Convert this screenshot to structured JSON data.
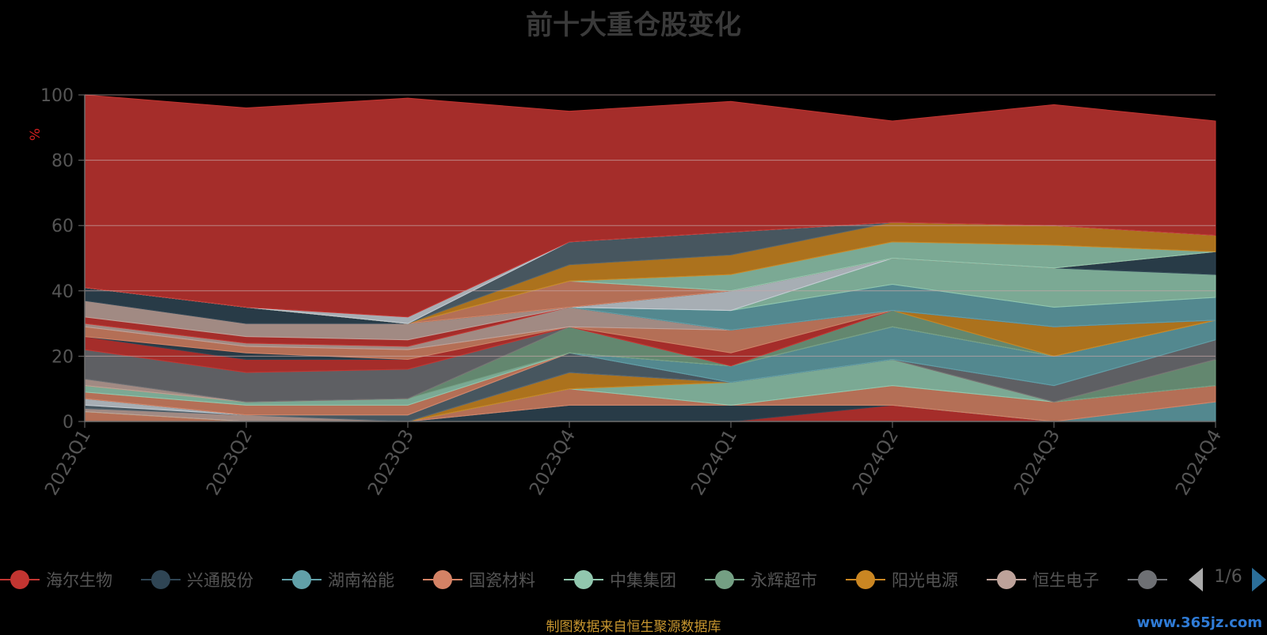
{
  "title": "前十大重仓股变化",
  "source_note": "制图数据来自恒生聚源数据库",
  "watermark": "www.365jz.com",
  "pager": {
    "text": "1/6"
  },
  "legend": {
    "items": [
      {
        "label": "海尔生物",
        "color": "#c23531"
      },
      {
        "label": "兴通股份",
        "color": "#2f4554"
      },
      {
        "label": "湖南裕能",
        "color": "#61a0a8"
      },
      {
        "label": "国瓷材料",
        "color": "#d48265"
      },
      {
        "label": "中集集团",
        "color": "#91c7ae"
      },
      {
        "label": "永辉超市",
        "color": "#749f83"
      },
      {
        "label": "阳光电源",
        "color": "#ca8622"
      },
      {
        "label": "恒生电子",
        "color": "#bda29a"
      },
      {
        "label": "",
        "color": "#6e7074"
      }
    ]
  },
  "chart_data": {
    "type": "area",
    "stacked": true,
    "title": "前十大重仓股变化",
    "ylabel": "%",
    "ylim": [
      0,
      100
    ],
    "yticks": [
      0,
      20,
      40,
      60,
      80,
      100
    ],
    "categories": [
      "2023Q1",
      "2023Q2",
      "2023Q3",
      "2023Q4",
      "2024Q1",
      "2024Q2",
      "2024Q3",
      "2024Q4"
    ],
    "grid": true,
    "legend_position": "bottom",
    "series": [
      {
        "color": "#c23531",
        "values": [
          0,
          0,
          0,
          0,
          0,
          5,
          0,
          0
        ]
      },
      {
        "color": "#2f4554",
        "values": [
          0,
          0,
          0,
          5,
          5,
          0,
          0,
          0
        ]
      },
      {
        "color": "#61a0a8",
        "values": [
          0,
          0,
          0,
          0,
          0,
          0,
          0,
          6
        ]
      },
      {
        "color": "#d48265",
        "values": [
          3,
          0,
          0,
          5,
          0,
          6,
          6,
          5
        ]
      },
      {
        "color": "#91c7ae",
        "values": [
          0,
          0,
          0,
          0,
          7,
          8,
          0,
          0
        ]
      },
      {
        "color": "#749f83",
        "values": [
          0,
          0,
          0,
          0,
          0,
          0,
          0,
          8
        ]
      },
      {
        "color": "#ca8622",
        "values": [
          0,
          0,
          0,
          5,
          0,
          0,
          0,
          0
        ]
      },
      {
        "color": "#bda29a",
        "values": [
          1,
          2,
          0,
          0,
          0,
          0,
          0,
          0
        ]
      },
      {
        "color": "#6e7074",
        "values": [
          0,
          0,
          0,
          0,
          0,
          0,
          5,
          6
        ]
      },
      {
        "color": "#546570",
        "values": [
          1,
          0,
          2,
          6,
          0,
          0,
          0,
          0
        ]
      },
      {
        "color": "#c4ccd3",
        "values": [
          2,
          0,
          0,
          0,
          0,
          0,
          0,
          0
        ]
      },
      {
        "color": "#2f4554",
        "values": [
          0,
          0,
          0,
          0,
          0,
          0,
          0,
          0
        ]
      },
      {
        "color": "#61a0a8",
        "values": [
          0,
          0,
          0,
          0,
          5,
          10,
          9,
          6
        ]
      },
      {
        "color": "#d48265",
        "values": [
          2,
          3,
          3,
          0,
          0,
          0,
          0,
          0
        ]
      },
      {
        "color": "#91c7ae",
        "values": [
          2,
          1,
          2,
          0,
          0,
          0,
          0,
          0
        ]
      },
      {
        "color": "#749f83",
        "values": [
          0,
          0,
          0,
          8,
          0,
          5,
          0,
          0
        ]
      },
      {
        "color": "#ca8622",
        "values": [
          0,
          0,
          0,
          0,
          0,
          0,
          9,
          0
        ]
      },
      {
        "color": "#bda29a",
        "values": [
          2,
          0,
          0,
          0,
          0,
          0,
          0,
          0
        ]
      },
      {
        "color": "#6e7074",
        "values": [
          9,
          9,
          9,
          0,
          0,
          0,
          0,
          0
        ]
      },
      {
        "color": "#c23531",
        "values": [
          4,
          4,
          3,
          0,
          4,
          0,
          0,
          0
        ]
      },
      {
        "color": "#2f4554",
        "values": [
          0,
          2,
          0,
          0,
          0,
          0,
          0,
          0
        ]
      },
      {
        "color": "#d48265",
        "values": [
          3,
          2,
          3,
          0,
          7,
          0,
          0,
          0
        ]
      },
      {
        "color": "#bda29a",
        "values": [
          1,
          1,
          1,
          6,
          0,
          0,
          0,
          0
        ]
      },
      {
        "color": "#c23531",
        "values": [
          2,
          2,
          2,
          0,
          0,
          0,
          0,
          0
        ]
      },
      {
        "color": "#bda29a",
        "values": [
          5,
          4,
          5,
          0,
          0,
          0,
          0,
          0
        ]
      },
      {
        "color": "#2f4554",
        "values": [
          4,
          5,
          0,
          0,
          0,
          0,
          0,
          0
        ]
      },
      {
        "color": "#61a0a8",
        "values": [
          0,
          0,
          0,
          0,
          6,
          8,
          6,
          7
        ]
      },
      {
        "color": "#91c7ae",
        "values": [
          0,
          0,
          0,
          0,
          0,
          8,
          12,
          7
        ]
      },
      {
        "color": "#c4ccd3",
        "values": [
          0,
          0,
          0,
          0,
          6,
          0,
          0,
          0
        ]
      },
      {
        "color": "#749f83",
        "values": [
          0,
          0,
          0,
          0,
          0,
          0,
          0,
          0
        ]
      },
      {
        "color": "#2f4554",
        "values": [
          0,
          0,
          0,
          0,
          0,
          0,
          0,
          7
        ]
      },
      {
        "color": "#d48265",
        "values": [
          0,
          0,
          0,
          8,
          0,
          0,
          0,
          0
        ]
      },
      {
        "color": "#91c7ae",
        "values": [
          0,
          0,
          0,
          0,
          5,
          5,
          7,
          0
        ]
      },
      {
        "color": "#ca8622",
        "values": [
          0,
          0,
          0,
          5,
          6,
          6,
          6,
          5
        ]
      },
      {
        "color": "#546570",
        "values": [
          0,
          0,
          0,
          7,
          7,
          0,
          0,
          0
        ]
      },
      {
        "color": "#c4ccd3",
        "values": [
          0,
          0,
          2,
          0,
          0,
          0,
          0,
          0
        ]
      },
      {
        "color": "#c23531",
        "values": [
          59,
          61,
          67,
          40,
          40,
          31,
          37,
          35
        ]
      }
    ]
  }
}
